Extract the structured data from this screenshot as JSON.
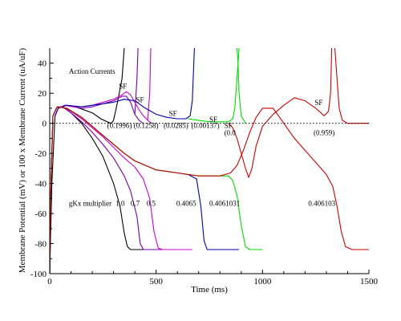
{
  "chart_data": {
    "type": "line",
    "xlabel": "Time (ms)",
    "ylabel": "Membrane Potential (mV) or 100 x Membrane Current (uA/uF)",
    "xlim": [
      0,
      1500
    ],
    "ylim": [
      -100,
      50
    ],
    "x_ticks": [
      0,
      500,
      1000,
      1500
    ],
    "y_ticks": [
      -100,
      -80,
      -60,
      -40,
      -20,
      0,
      20,
      40
    ],
    "x_tick_labels": [
      "0",
      "500",
      "1000",
      "1500"
    ],
    "y_tick_labels": [
      "-100",
      "-80",
      "-60",
      "-40",
      "-20",
      "0",
      "20",
      "40"
    ],
    "zero_line": "dotted",
    "series": [
      {
        "color": "#000000",
        "potential": [
          [
            0,
            -100
          ],
          [
            6,
            -40
          ],
          [
            15,
            5
          ],
          [
            35,
            11
          ],
          [
            60,
            11
          ],
          [
            100,
            7
          ],
          [
            150,
            0
          ],
          [
            200,
            -10
          ],
          [
            250,
            -22
          ],
          [
            300,
            -40
          ],
          [
            330,
            -55
          ],
          [
            350,
            -73
          ],
          [
            365,
            -82
          ],
          [
            380,
            -84
          ],
          [
            500,
            -84
          ]
        ],
        "current": [
          [
            0,
            -100
          ],
          [
            10,
            -40
          ],
          [
            25,
            5
          ],
          [
            40,
            10
          ],
          [
            80,
            12
          ],
          [
            120,
            11
          ],
          [
            160,
            9
          ],
          [
            200,
            7
          ],
          [
            240,
            3
          ],
          [
            270,
            1
          ],
          [
            290,
            0
          ]
        ],
        "action_current": [
          [
            290,
            0
          ],
          [
            300,
            2
          ],
          [
            320,
            15
          ],
          [
            340,
            30
          ],
          [
            350,
            50
          ]
        ]
      },
      {
        "color": "#7700aa",
        "potential": [
          [
            0,
            -100
          ],
          [
            6,
            -40
          ],
          [
            15,
            5
          ],
          [
            35,
            11
          ],
          [
            60,
            11
          ],
          [
            100,
            7
          ],
          [
            150,
            1
          ],
          [
            200,
            -6
          ],
          [
            250,
            -14
          ],
          [
            300,
            -23
          ],
          [
            350,
            -35
          ],
          [
            380,
            -45
          ],
          [
            410,
            -62
          ],
          [
            425,
            -80
          ],
          [
            440,
            -84
          ],
          [
            560,
            -84
          ]
        ],
        "current": [
          [
            25,
            5
          ],
          [
            40,
            10
          ],
          [
            70,
            12
          ],
          [
            110,
            11
          ],
          [
            150,
            10
          ],
          [
            200,
            11
          ],
          [
            250,
            13
          ],
          [
            300,
            15
          ],
          [
            340,
            18
          ],
          [
            360,
            18
          ],
          [
            380,
            14
          ],
          [
            400,
            6
          ],
          [
            420,
            2
          ],
          [
            440,
            0
          ]
        ],
        "action_current": [
          [
            400,
            6
          ],
          [
            410,
            30
          ],
          [
            415,
            50
          ]
        ]
      },
      {
        "color": "#cc00cc",
        "potential": [
          [
            0,
            -100
          ],
          [
            6,
            -40
          ],
          [
            15,
            5
          ],
          [
            35,
            11
          ],
          [
            60,
            11
          ],
          [
            100,
            8
          ],
          [
            150,
            3
          ],
          [
            200,
            -3
          ],
          [
            250,
            -9
          ],
          [
            300,
            -16
          ],
          [
            350,
            -23
          ],
          [
            400,
            -29
          ],
          [
            440,
            -37
          ],
          [
            470,
            -50
          ],
          [
            490,
            -72
          ],
          [
            510,
            -83
          ],
          [
            530,
            -84
          ],
          [
            670,
            -84
          ]
        ],
        "current": [
          [
            25,
            5
          ],
          [
            40,
            10
          ],
          [
            70,
            12
          ],
          [
            110,
            11
          ],
          [
            150,
            11
          ],
          [
            200,
            12
          ],
          [
            250,
            14
          ],
          [
            300,
            16
          ],
          [
            340,
            19
          ],
          [
            360,
            21
          ],
          [
            380,
            19
          ],
          [
            400,
            14
          ],
          [
            420,
            9
          ],
          [
            440,
            5
          ],
          [
            460,
            2
          ],
          [
            480,
            0
          ]
        ],
        "action_current": [
          [
            460,
            2
          ],
          [
            470,
            20
          ],
          [
            475,
            50
          ]
        ]
      },
      {
        "color": "#0000aa",
        "potential": [
          [
            0,
            -100
          ],
          [
            6,
            -40
          ],
          [
            15,
            5
          ],
          [
            35,
            11
          ],
          [
            80,
            10
          ],
          [
            150,
            4
          ],
          [
            200,
            -2
          ],
          [
            250,
            -8
          ],
          [
            300,
            -14
          ],
          [
            350,
            -20
          ],
          [
            400,
            -25
          ],
          [
            450,
            -28
          ],
          [
            500,
            -31
          ],
          [
            550,
            -32
          ],
          [
            600,
            -33
          ],
          [
            650,
            -34
          ],
          [
            690,
            -37
          ],
          [
            710,
            -55
          ],
          [
            725,
            -78
          ],
          [
            740,
            -84
          ],
          [
            890,
            -84
          ]
        ],
        "current": [
          [
            25,
            5
          ],
          [
            40,
            10
          ],
          [
            80,
            12
          ],
          [
            150,
            11
          ],
          [
            200,
            12
          ],
          [
            250,
            13
          ],
          [
            300,
            14
          ],
          [
            350,
            16
          ],
          [
            400,
            15
          ],
          [
            450,
            10
          ],
          [
            500,
            6
          ],
          [
            550,
            4
          ],
          [
            600,
            3
          ],
          [
            640,
            3
          ],
          [
            660,
            5
          ],
          [
            670,
            15
          ],
          [
            680,
            50
          ]
        ],
        "action_current": []
      },
      {
        "color": "#00dd00",
        "potential": [
          [
            0,
            -100
          ],
          [
            6,
            -40
          ],
          [
            15,
            5
          ],
          [
            35,
            11
          ],
          [
            80,
            10
          ],
          [
            150,
            4
          ],
          [
            200,
            -2
          ],
          [
            250,
            -8
          ],
          [
            300,
            -14
          ],
          [
            350,
            -20
          ],
          [
            400,
            -25
          ],
          [
            450,
            -28
          ],
          [
            500,
            -31
          ],
          [
            550,
            -32
          ],
          [
            600,
            -33
          ],
          [
            650,
            -34
          ],
          [
            700,
            -35
          ],
          [
            750,
            -35
          ],
          [
            800,
            -35
          ],
          [
            840,
            -35
          ],
          [
            860,
            -38
          ],
          [
            880,
            -48
          ],
          [
            900,
            -68
          ],
          [
            920,
            -82
          ],
          [
            940,
            -84
          ],
          [
            1000,
            -84
          ]
        ],
        "current": [
          [
            650,
            3
          ],
          [
            700,
            2
          ],
          [
            750,
            1
          ],
          [
            800,
            1
          ],
          [
            840,
            1
          ],
          [
            860,
            3
          ],
          [
            870,
            10
          ],
          [
            880,
            30
          ],
          [
            890,
            50
          ]
        ],
        "action_current": [
          [
            880,
            50
          ],
          [
            885,
            40
          ],
          [
            890,
            20
          ],
          [
            900,
            5
          ],
          [
            920,
            0
          ]
        ]
      },
      {
        "color": "#cc0000",
        "potential": [
          [
            0,
            -100
          ],
          [
            6,
            -40
          ],
          [
            15,
            5
          ],
          [
            35,
            11
          ],
          [
            80,
            10
          ],
          [
            150,
            4
          ],
          [
            200,
            -2
          ],
          [
            250,
            -8
          ],
          [
            300,
            -14
          ],
          [
            350,
            -20
          ],
          [
            400,
            -25
          ],
          [
            450,
            -28
          ],
          [
            500,
            -31
          ],
          [
            550,
            -32
          ],
          [
            600,
            -33
          ],
          [
            650,
            -34
          ],
          [
            700,
            -35
          ],
          [
            750,
            -35
          ],
          [
            800,
            -35
          ],
          [
            850,
            -33
          ],
          [
            880,
            -28
          ],
          [
            910,
            -18
          ],
          [
            940,
            -6
          ],
          [
            970,
            4
          ],
          [
            1000,
            10
          ],
          [
            1050,
            10
          ],
          [
            1100,
            0
          ],
          [
            1150,
            -10
          ],
          [
            1200,
            -18
          ],
          [
            1250,
            -26
          ],
          [
            1300,
            -34
          ],
          [
            1330,
            -42
          ],
          [
            1350,
            -55
          ],
          [
            1370,
            -72
          ],
          [
            1390,
            -82
          ],
          [
            1420,
            -84
          ],
          [
            1500,
            -84
          ]
        ],
        "current": [
          [
            840,
            0
          ],
          [
            860,
            -3
          ],
          [
            880,
            -10
          ],
          [
            900,
            -20
          ],
          [
            920,
            -30
          ],
          [
            935,
            -36
          ],
          [
            950,
            -30
          ],
          [
            970,
            -15
          ],
          [
            1000,
            -2
          ],
          [
            1050,
            6
          ],
          [
            1100,
            12
          ],
          [
            1150,
            17
          ],
          [
            1200,
            15
          ],
          [
            1250,
            10
          ],
          [
            1290,
            5
          ],
          [
            1310,
            8
          ],
          [
            1320,
            20
          ],
          [
            1325,
            50
          ]
        ],
        "action_current": [
          [
            1340,
            50
          ],
          [
            1350,
            30
          ],
          [
            1360,
            10
          ],
          [
            1375,
            2
          ],
          [
            1400,
            0
          ],
          [
            1500,
            0
          ]
        ]
      }
    ],
    "annotations": [
      {
        "text": "Action Currents",
        "x": 90,
        "y": 33
      },
      {
        "text": "SF",
        "x": 325,
        "y": 23
      },
      {
        "text": "SF",
        "x": 405,
        "y": 14
      },
      {
        "text": "SF",
        "x": 560,
        "y": 5
      },
      {
        "text": "SF",
        "x": 750,
        "y": 1
      },
      {
        "text": "SF",
        "x": 820,
        "y": -3
      },
      {
        "text": "SF",
        "x": 1245,
        "y": 12
      },
      {
        "text": "(0.1996)",
        "x": 270,
        "y": -3
      },
      {
        "text": "(0.1258)",
        "x": 395,
        "y": -3
      },
      {
        "text": "(0.0285)",
        "x": 535,
        "y": -3
      },
      {
        "text": "(0.00137)",
        "x": 665,
        "y": -3
      },
      {
        "text": "(0.0",
        "x": 820,
        "y": -8
      },
      {
        "text": "(0.959)",
        "x": 1240,
        "y": -8
      },
      {
        "text": "gKx multiplier",
        "x": 90,
        "y": -55
      },
      {
        "text": "1.0",
        "x": 310,
        "y": -55
      },
      {
        "text": "0.7",
        "x": 380,
        "y": -55
      },
      {
        "text": "0.5",
        "x": 455,
        "y": -55
      },
      {
        "text": "0.4065",
        "x": 595,
        "y": -55
      },
      {
        "text": "0.4061031",
        "x": 750,
        "y": -55
      },
      {
        "text": "0.406103",
        "x": 1215,
        "y": -55
      }
    ]
  }
}
